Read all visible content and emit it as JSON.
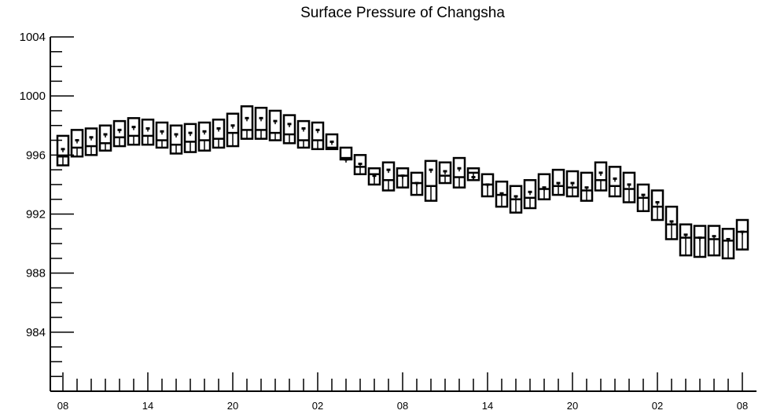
{
  "chart_data": {
    "type": "box",
    "title": "Surface Pressure of Changsha",
    "xlabel": "",
    "ylabel": "",
    "ylim": [
      980,
      1004
    ],
    "yticks": [
      984,
      988,
      992,
      996,
      1000,
      1004
    ],
    "grid": false,
    "x_tick_labels": [
      "08",
      "14",
      "20",
      "02",
      "08",
      "14",
      "20",
      "02",
      "08"
    ],
    "x_tick_label_hours": [
      0,
      6,
      12,
      18,
      24,
      30,
      36,
      42,
      48
    ],
    "hours": [
      0,
      1,
      2,
      3,
      4,
      5,
      6,
      7,
      8,
      9,
      10,
      11,
      12,
      13,
      14,
      15,
      16,
      17,
      18,
      19,
      20,
      21,
      22,
      23,
      24,
      25,
      26,
      27,
      28,
      29,
      30,
      31,
      32,
      33,
      34,
      35,
      36,
      37,
      38,
      39,
      40,
      41,
      42,
      43,
      44,
      45,
      46,
      47,
      48
    ],
    "series": [
      {
        "box_low": [
          995.3,
          995.9,
          996.0,
          996.3,
          996.6,
          996.7,
          996.7,
          996.5,
          996.1,
          996.2,
          996.3,
          996.5,
          996.6,
          997.1,
          997.1,
          997.0,
          996.8,
          996.5,
          996.4,
          996.4,
          995.7,
          994.7,
          994.0,
          993.6,
          993.8,
          993.3,
          992.9,
          994.1,
          993.8,
          994.3,
          993.2,
          992.5,
          992.1,
          992.4,
          993.0,
          993.3,
          993.2,
          992.9,
          993.6,
          993.2,
          992.8,
          992.2,
          991.6,
          990.3,
          989.2,
          989.1,
          989.2,
          989.0,
          989.6
        ],
        "box_high": [
          997.3,
          997.7,
          997.8,
          998.0,
          998.3,
          998.5,
          998.4,
          998.2,
          998.0,
          998.1,
          998.2,
          998.4,
          998.8,
          999.3,
          999.2,
          999.0,
          998.7,
          998.3,
          998.2,
          997.4,
          996.5,
          996.0,
          995.1,
          995.5,
          995.1,
          994.8,
          995.6,
          995.5,
          995.8,
          995.1,
          994.7,
          994.2,
          993.9,
          994.3,
          994.7,
          995.0,
          994.9,
          994.8,
          995.5,
          995.2,
          994.8,
          994.0,
          993.6,
          992.5,
          991.3,
          991.2,
          991.2,
          991.0,
          991.6
        ],
        "median": [
          995.9,
          996.5,
          996.6,
          996.8,
          997.2,
          997.3,
          997.3,
          997.0,
          996.7,
          996.9,
          997.0,
          997.1,
          997.5,
          997.7,
          997.7,
          997.5,
          997.4,
          997.0,
          997.0,
          996.5,
          995.8,
          995.2,
          994.7,
          994.3,
          994.6,
          994.1,
          993.9,
          994.6,
          994.5,
          994.8,
          994.0,
          993.3,
          993.0,
          993.1,
          993.7,
          993.9,
          993.8,
          993.6,
          994.3,
          993.9,
          993.7,
          993.1,
          992.5,
          991.3,
          990.4,
          990.4,
          990.3,
          990.2,
          990.8
        ],
        "dot": [
          996.4,
          997.0,
          997.2,
          997.4,
          997.7,
          997.9,
          997.8,
          997.6,
          997.4,
          997.5,
          997.6,
          997.8,
          998.0,
          998.5,
          998.5,
          998.3,
          998.1,
          997.8,
          997.7,
          996.9,
          995.7,
          995.4,
          994.6,
          995.0,
          994.6,
          994.1,
          995.0,
          994.9,
          995.1,
          994.5,
          994.0,
          993.4,
          993.2,
          993.5,
          993.8,
          994.1,
          994.1,
          993.8,
          994.8,
          994.4,
          994.0,
          993.3,
          992.8,
          991.5,
          990.6,
          990.4,
          990.5,
          990.3,
          990.8
        ]
      }
    ]
  }
}
